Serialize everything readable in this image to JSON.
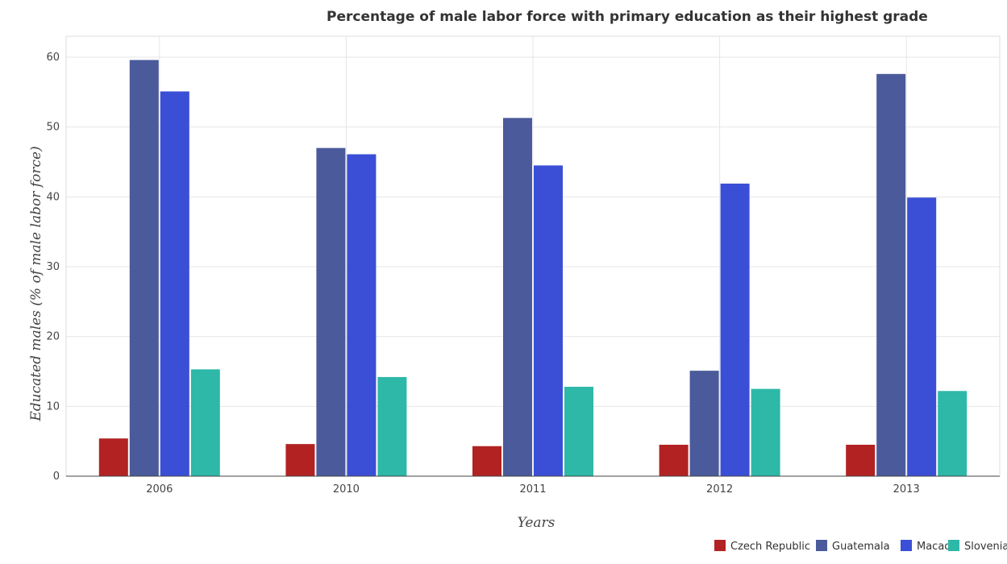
{
  "chart_data": {
    "type": "bar",
    "title": "Percentage of male labor force with primary education as their highest grade",
    "xlabel": "Years",
    "ylabel": "Educated males (% of male labor force)",
    "categories": [
      "2006",
      "2010",
      "2011",
      "2012",
      "2013"
    ],
    "series": [
      {
        "name": "Czech Republic",
        "color": "#b22222",
        "values": [
          5.4,
          4.6,
          4.3,
          4.5,
          4.5
        ]
      },
      {
        "name": "Guatemala",
        "color": "#4a5a9a",
        "values": [
          59.6,
          47.0,
          51.3,
          15.1,
          57.6
        ]
      },
      {
        "name": "Macao",
        "color": "#3a4fd6",
        "values": [
          55.1,
          46.1,
          44.5,
          41.9,
          39.9
        ]
      },
      {
        "name": "Slovenia",
        "color": "#2db8a8",
        "values": [
          15.3,
          14.2,
          12.8,
          12.5,
          12.2
        ]
      }
    ],
    "ylim": [
      0,
      63
    ],
    "yticks": [
      0,
      10,
      20,
      30,
      40,
      50,
      60
    ],
    "grid": true,
    "legend_position": "bottom-right"
  }
}
